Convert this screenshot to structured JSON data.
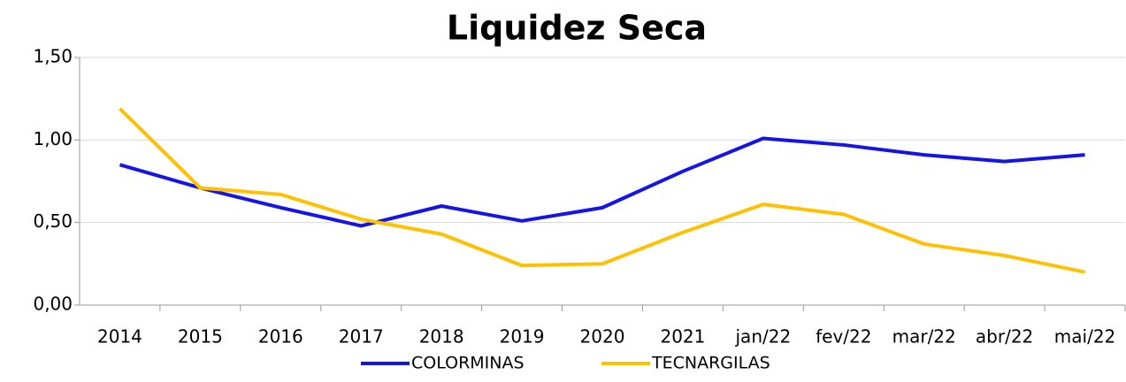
{
  "chart_data": {
    "type": "line",
    "title": "Liquidez Seca",
    "categories": [
      "2014",
      "2015",
      "2016",
      "2017",
      "2018",
      "2019",
      "2020",
      "2021",
      "jan/22",
      "fev/22",
      "mar/22",
      "abr/22",
      "mai/22"
    ],
    "series": [
      {
        "name": "COLORMINAS",
        "color": "#1414e6",
        "values": [
          0.85,
          0.71,
          0.59,
          0.48,
          0.6,
          0.51,
          0.59,
          0.81,
          1.01,
          0.97,
          0.91,
          0.87,
          0.91
        ]
      },
      {
        "name": "TECNARGILAS",
        "color": "#ffc000",
        "values": [
          1.19,
          0.71,
          0.67,
          0.52,
          0.43,
          0.24,
          0.25,
          0.44,
          0.61,
          0.55,
          0.37,
          0.3,
          0.2
        ]
      }
    ],
    "ylim": [
      0,
      1.5
    ],
    "yticks": [
      {
        "value": 0,
        "label": "0,00"
      },
      {
        "value": 0.5,
        "label": "0,50"
      },
      {
        "value": 1,
        "label": "1,00"
      },
      {
        "value": 1.5,
        "label": "1,50"
      }
    ],
    "grid": true,
    "legend": "bottom"
  }
}
